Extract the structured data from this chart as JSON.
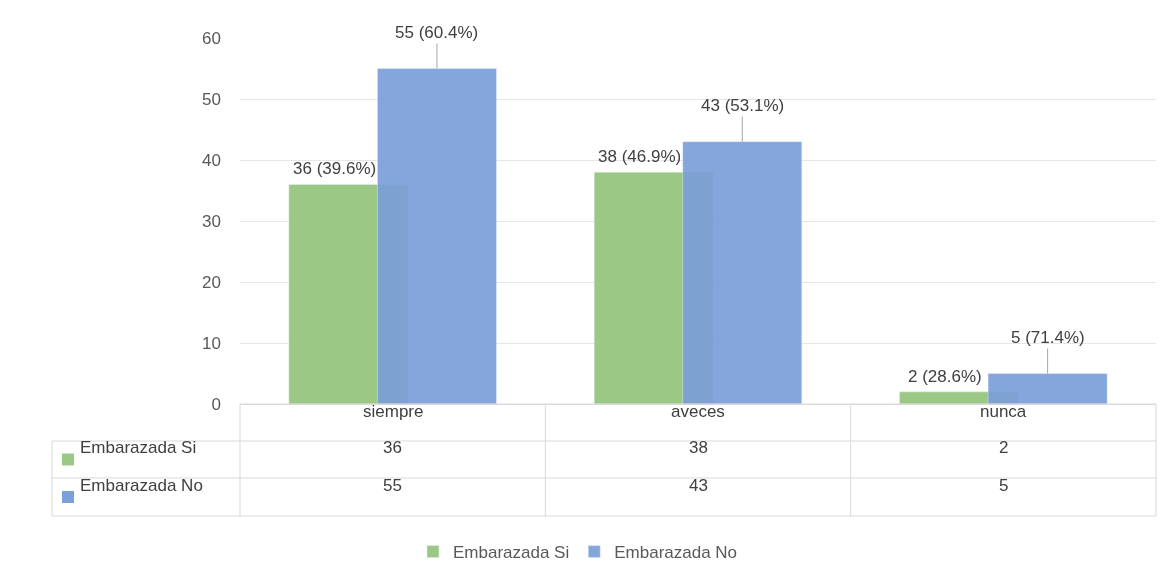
{
  "chart_data": {
    "type": "bar",
    "categories": [
      "siempre",
      "aveces",
      "nunca"
    ],
    "series": [
      {
        "name": "Embarazada Si",
        "color": "#9bc985",
        "values": [
          36,
          38,
          2
        ]
      },
      {
        "name": "Embarazada No",
        "color": "#7b9fd9",
        "values": [
          55,
          43,
          5
        ]
      }
    ],
    "annotations": [
      {
        "text": "36 (39.6%)",
        "x": "siempre",
        "y": 36
      },
      {
        "text": "38 (46.9%)",
        "x": "aveces",
        "y": 38
      },
      {
        "text": "2 (28.6%)",
        "x": "nunca",
        "y": 2
      },
      {
        "text": "55 (60.4%)",
        "x": "siempre",
        "y": 55
      },
      {
        "text": "43 (53.1%)",
        "x": "aveces",
        "y": 43
      },
      {
        "text": "5 (71.4%)",
        "x": "nunca",
        "y": 5
      }
    ],
    "ylim": [
      0,
      60
    ],
    "yticks": [
      0,
      10,
      20,
      30,
      40,
      50,
      60
    ],
    "grid": "y",
    "legend": "bottom",
    "data_labels": true
  }
}
